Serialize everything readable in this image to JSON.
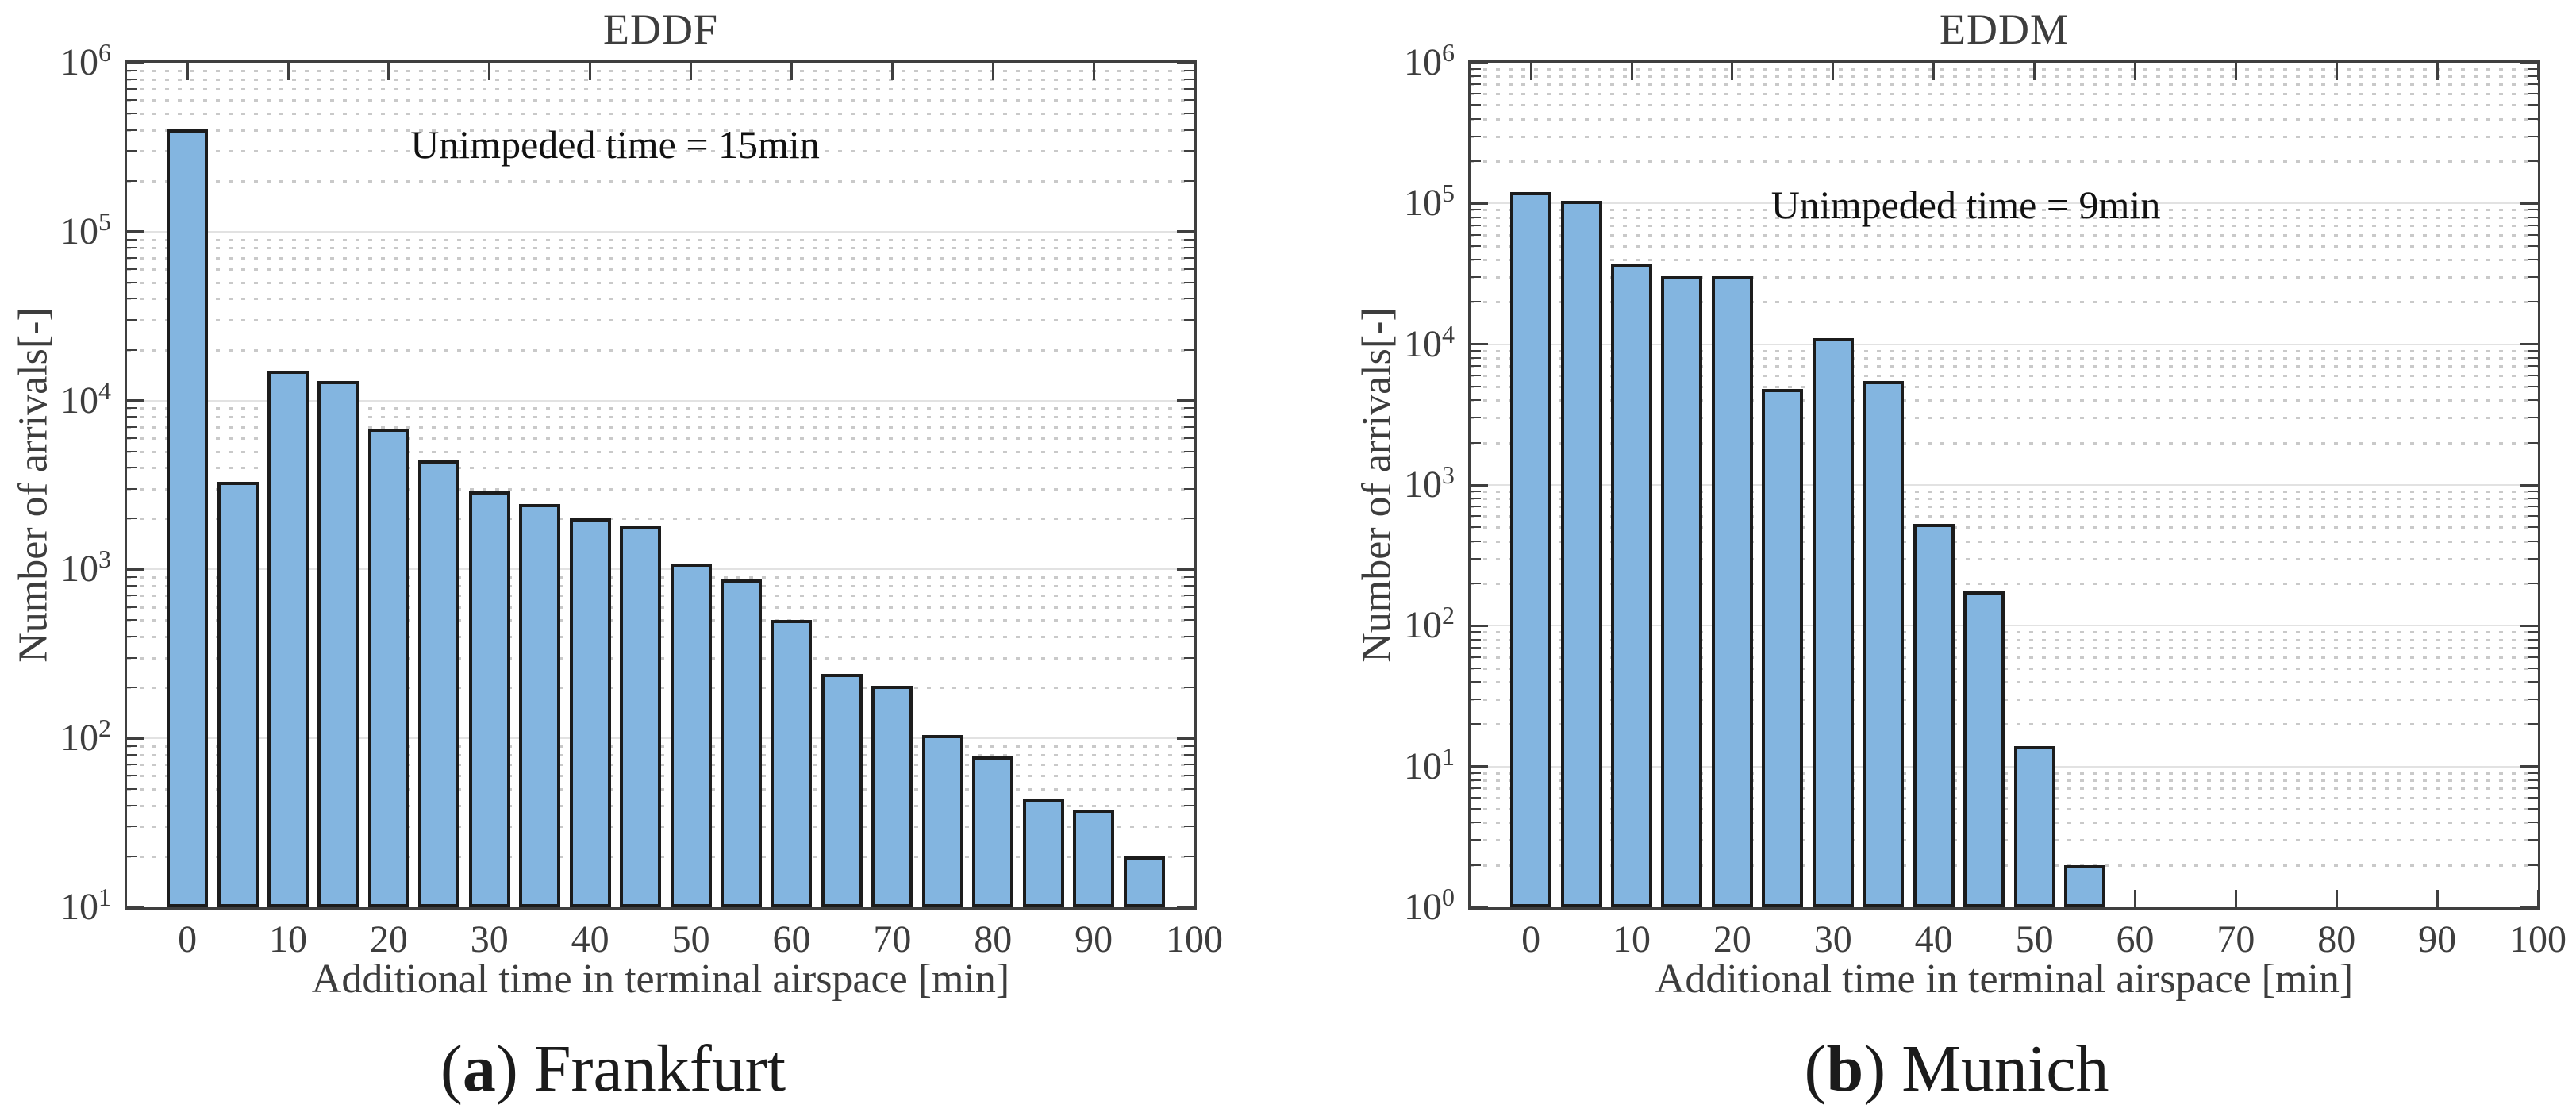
{
  "figure_title": "",
  "style": {
    "bar_fill": "#83b5e0",
    "bar_edge": "#1c1c1c",
    "axis_color": "#3f3f3f",
    "major_grid_color": "#e2e2e2",
    "minor_grid_color": "#c9c9c9",
    "tick_text_color": "#3d3d3d",
    "annotation_text_color": "#111111",
    "caption_text_color": "#1b1b1b",
    "background": "#ffffff"
  },
  "captions": {
    "a": {
      "open": "(",
      "letter": "a",
      "close": ")",
      "text": "Frankfurt"
    },
    "b": {
      "open": "(",
      "letter": "b",
      "close": ")",
      "text": "Munich"
    }
  },
  "chart_data": [
    {
      "id": "eddf",
      "type": "bar",
      "title": "EDDF",
      "annotation": "Unimpeded time = 15min",
      "xlabel": "Additional time in terminal airspace [min]",
      "ylabel": "Number of arrivals[-]",
      "x_axis_unit": "min",
      "bin_width_min": 5,
      "bin_centers": [
        0,
        5,
        10,
        15,
        20,
        25,
        30,
        35,
        40,
        45,
        50,
        55,
        60,
        65,
        70,
        75,
        80,
        85,
        90,
        95
      ],
      "values": [
        405000,
        3300,
        15000,
        13000,
        6800,
        4400,
        2900,
        2450,
        2000,
        1800,
        1080,
        870,
        500,
        240,
        205,
        105,
        78,
        44,
        38,
        20
      ],
      "xlim": [
        -6,
        100
      ],
      "ylim": [
        10,
        1000000
      ],
      "yscale": "log",
      "xticks": [
        0,
        10,
        20,
        30,
        40,
        50,
        60,
        70,
        80,
        90,
        100
      ],
      "ytick_exponents": [
        6,
        5,
        4,
        3,
        2,
        1
      ],
      "grid": {
        "major": "solid",
        "minor": "dotted"
      },
      "legend_position": "none"
    },
    {
      "id": "eddm",
      "type": "bar",
      "title": "EDDM",
      "annotation": "Unimpeded time = 9min",
      "xlabel": "Additional time in terminal airspace [min]",
      "ylabel": "Number of arrivals[-]",
      "x_axis_unit": "min",
      "bin_width_min": 5,
      "bin_centers": [
        0,
        5,
        10,
        15,
        20,
        25,
        30,
        35,
        40,
        45,
        50,
        55
      ],
      "values": [
        120000,
        105000,
        37000,
        30500,
        30500,
        4800,
        11000,
        5500,
        530,
        175,
        14,
        2
      ],
      "xlim": [
        -6,
        100
      ],
      "ylim": [
        1,
        1000000
      ],
      "yscale": "log",
      "xticks": [
        0,
        10,
        20,
        30,
        40,
        50,
        60,
        70,
        80,
        90,
        100
      ],
      "ytick_exponents": [
        6,
        5,
        4,
        3,
        2,
        1,
        0
      ],
      "grid": {
        "major": "solid",
        "minor": "dotted"
      },
      "legend_position": "none"
    }
  ]
}
